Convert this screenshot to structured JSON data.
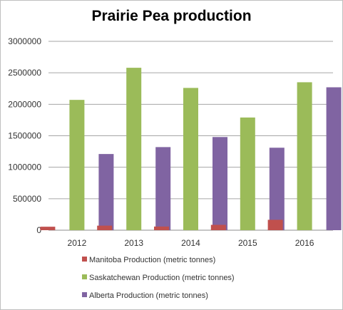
{
  "chart_data": {
    "type": "bar",
    "title": "Prairie Pea production",
    "categories": [
      "2012",
      "2013",
      "2014",
      "2015",
      "2016"
    ],
    "series": [
      {
        "name": "Manitoba Production (metric tonnes)",
        "color": "#c0504d",
        "values": [
          55000,
          72000,
          58000,
          85000,
          165000
        ]
      },
      {
        "name": "Saskatchewan Production (metric tonnes)",
        "color": "#9bbb59",
        "values": [
          2070000,
          2580000,
          2260000,
          1790000,
          2350000
        ]
      },
      {
        "name": "Alberta Production (metric tonnes)",
        "color": "#8064a2",
        "values": [
          1210000,
          1320000,
          1480000,
          1310000,
          2270000
        ]
      }
    ],
    "yticks": [
      "0",
      "500000",
      "1000000",
      "1500000",
      "2000000",
      "2500000",
      "3000000"
    ],
    "ylim": [
      0,
      3000000
    ],
    "xlabel": "",
    "ylabel": "",
    "grid": true,
    "legend_position": "bottom"
  }
}
